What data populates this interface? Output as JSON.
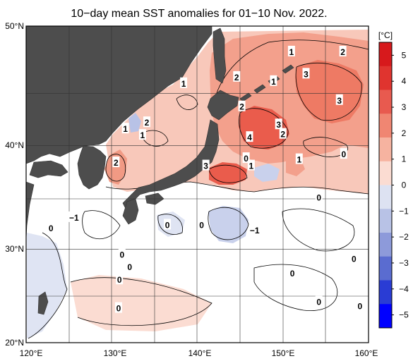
{
  "title": "10−day mean SST anomalies for 01−10 Nov. 2022.",
  "lat_labels": [
    "50°N",
    "40°N",
    "30°N",
    "20°N"
  ],
  "lon_labels": [
    "120°E",
    "130°E",
    "140°E",
    "150°E",
    "160°E"
  ],
  "colorbar": {
    "unit": "[°C]",
    "ticks": [
      "5",
      "4",
      "3",
      "2",
      "1",
      "0",
      "−1",
      "−2",
      "−3",
      "−4",
      "−5"
    ],
    "colors": [
      "#d7191c",
      "#e0342f",
      "#e85a4f",
      "#f08672",
      "#f6b3a0",
      "#fbdcd2",
      "#dde2f2",
      "#b8c2e6",
      "#8d9ada",
      "#5a6cd0",
      "#2a3cd4",
      "#0000ff"
    ]
  },
  "colors": {
    "land": "#4d4d4d",
    "grid": "#333333"
  },
  "contour_labels": [
    {
      "text": "1",
      "lon": 151.0,
      "lat": 47.6
    },
    {
      "text": "2",
      "lon": 157.0,
      "lat": 47.6
    },
    {
      "text": "3",
      "lon": 152.7,
      "lat": 45.5
    },
    {
      "text": "2",
      "lon": 144.6,
      "lat": 45.2
    },
    {
      "text": "1",
      "lon": 148.9,
      "lat": 44.8
    },
    {
      "text": "3",
      "lon": 156.6,
      "lat": 43.0
    },
    {
      "text": "1",
      "lon": 138.4,
      "lat": 44.6
    },
    {
      "text": "2",
      "lon": 145.2,
      "lat": 42.4
    },
    {
      "text": "2",
      "lon": 134.1,
      "lat": 40.9
    },
    {
      "text": "1",
      "lon": 131.6,
      "lat": 40.3
    },
    {
      "text": "1",
      "lon": 133.6,
      "lat": 39.7
    },
    {
      "text": "3",
      "lon": 149.5,
      "lat": 40.7
    },
    {
      "text": "2",
      "lon": 150.0,
      "lat": 39.8
    },
    {
      "text": "4",
      "lon": 146.1,
      "lat": 39.5
    },
    {
      "text": "0",
      "lon": 145.7,
      "lat": 37.5
    },
    {
      "text": "1",
      "lon": 146.3,
      "lat": 36.8
    },
    {
      "text": "3",
      "lon": 141.0,
      "lat": 36.8
    },
    {
      "text": "1",
      "lon": 151.9,
      "lat": 37.4
    },
    {
      "text": "0",
      "lon": 157.1,
      "lat": 37.9
    },
    {
      "text": "2",
      "lon": 130.5,
      "lat": 37.1
    },
    {
      "text": "0",
      "lon": 154.2,
      "lat": 33.8
    },
    {
      "text": "−1",
      "lon": 125.6,
      "lat": 31.9
    },
    {
      "text": "0",
      "lon": 122.9,
      "lat": 30.9
    },
    {
      "text": "0",
      "lon": 136.5,
      "lat": 31.2
    },
    {
      "text": "0",
      "lon": 140.5,
      "lat": 31.2
    },
    {
      "text": "−1",
      "lon": 146.7,
      "lat": 30.7
    },
    {
      "text": "0",
      "lon": 131.2,
      "lat": 28.4
    },
    {
      "text": "0",
      "lon": 132.1,
      "lat": 27.2
    },
    {
      "text": "0",
      "lon": 130.9,
      "lat": 26.0
    },
    {
      "text": "0",
      "lon": 151.1,
      "lat": 26.6
    },
    {
      "text": "0",
      "lon": 158.3,
      "lat": 28.0
    },
    {
      "text": "0",
      "lon": 130.8,
      "lat": 23.3
    },
    {
      "text": "0",
      "lon": 154.2,
      "lat": 23.9
    },
    {
      "text": "0",
      "lon": 159.0,
      "lat": 23.5
    }
  ]
}
